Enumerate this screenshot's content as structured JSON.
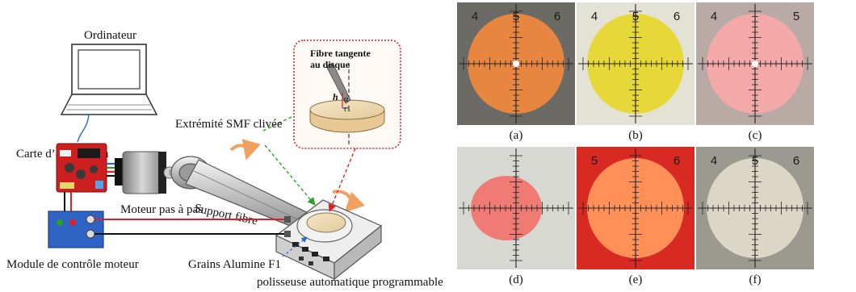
{
  "diagram": {
    "labels": {
      "computer": "Ordinateur",
      "acquisition_card": "Carte  d’acquisition",
      "cleaved_tip": "Extrémité SMF clivée",
      "tangent_fiber_line1": "Fibre tangente",
      "tangent_fiber_line2": "au disque",
      "h_symbol": "h",
      "alpha_symbol": "α",
      "r1_symbol": "r1",
      "stepper_motor": "Moteur pas à pas",
      "fiber_support": "Support fibre",
      "motor_control_module": "Module de contrôle moteur",
      "alumina_grains": "Grains Alumine F1",
      "polisher": "polisseuse automatique programmable"
    },
    "colors": {
      "board_red": "#cc1f1f",
      "module_blue": "#2f63c4",
      "inset_border": "#e0202a",
      "green_arrow": "#2aa02a",
      "red_arrow": "#e02020",
      "rotation_arrow": "#f0a060",
      "blue_dash": "#2a66c8"
    }
  },
  "micrographs": {
    "panels": [
      {
        "caption": "(a)",
        "scale": [
          "4",
          "5",
          "6"
        ],
        "disc_color": "#e68640",
        "bg_color": "#6b6a64",
        "center_dot": true
      },
      {
        "caption": "(b)",
        "scale": [
          "4",
          "5",
          "6"
        ],
        "disc_color": "#e7d83a",
        "bg_color": "#e4e2d4",
        "center_dot": false
      },
      {
        "caption": "(c)",
        "scale": [
          "4",
          "5"
        ],
        "disc_color": "#f2a9a8",
        "bg_color": "#b9aaa6",
        "center_dot": true
      },
      {
        "caption": "(d)",
        "scale": [],
        "disc_color": "#f07a74",
        "bg_color": "#d8d8d2",
        "center_dot": false
      },
      {
        "caption": "(e)",
        "scale": [
          "5",
          "6"
        ],
        "disc_color": "#ff9058",
        "bg_color": "#d82a22",
        "center_dot": false
      },
      {
        "caption": "(f)",
        "scale": [
          "4",
          "5",
          "6"
        ],
        "disc_color": "#dcd6c6",
        "bg_color": "#9c9a90",
        "center_dot": false
      }
    ]
  }
}
